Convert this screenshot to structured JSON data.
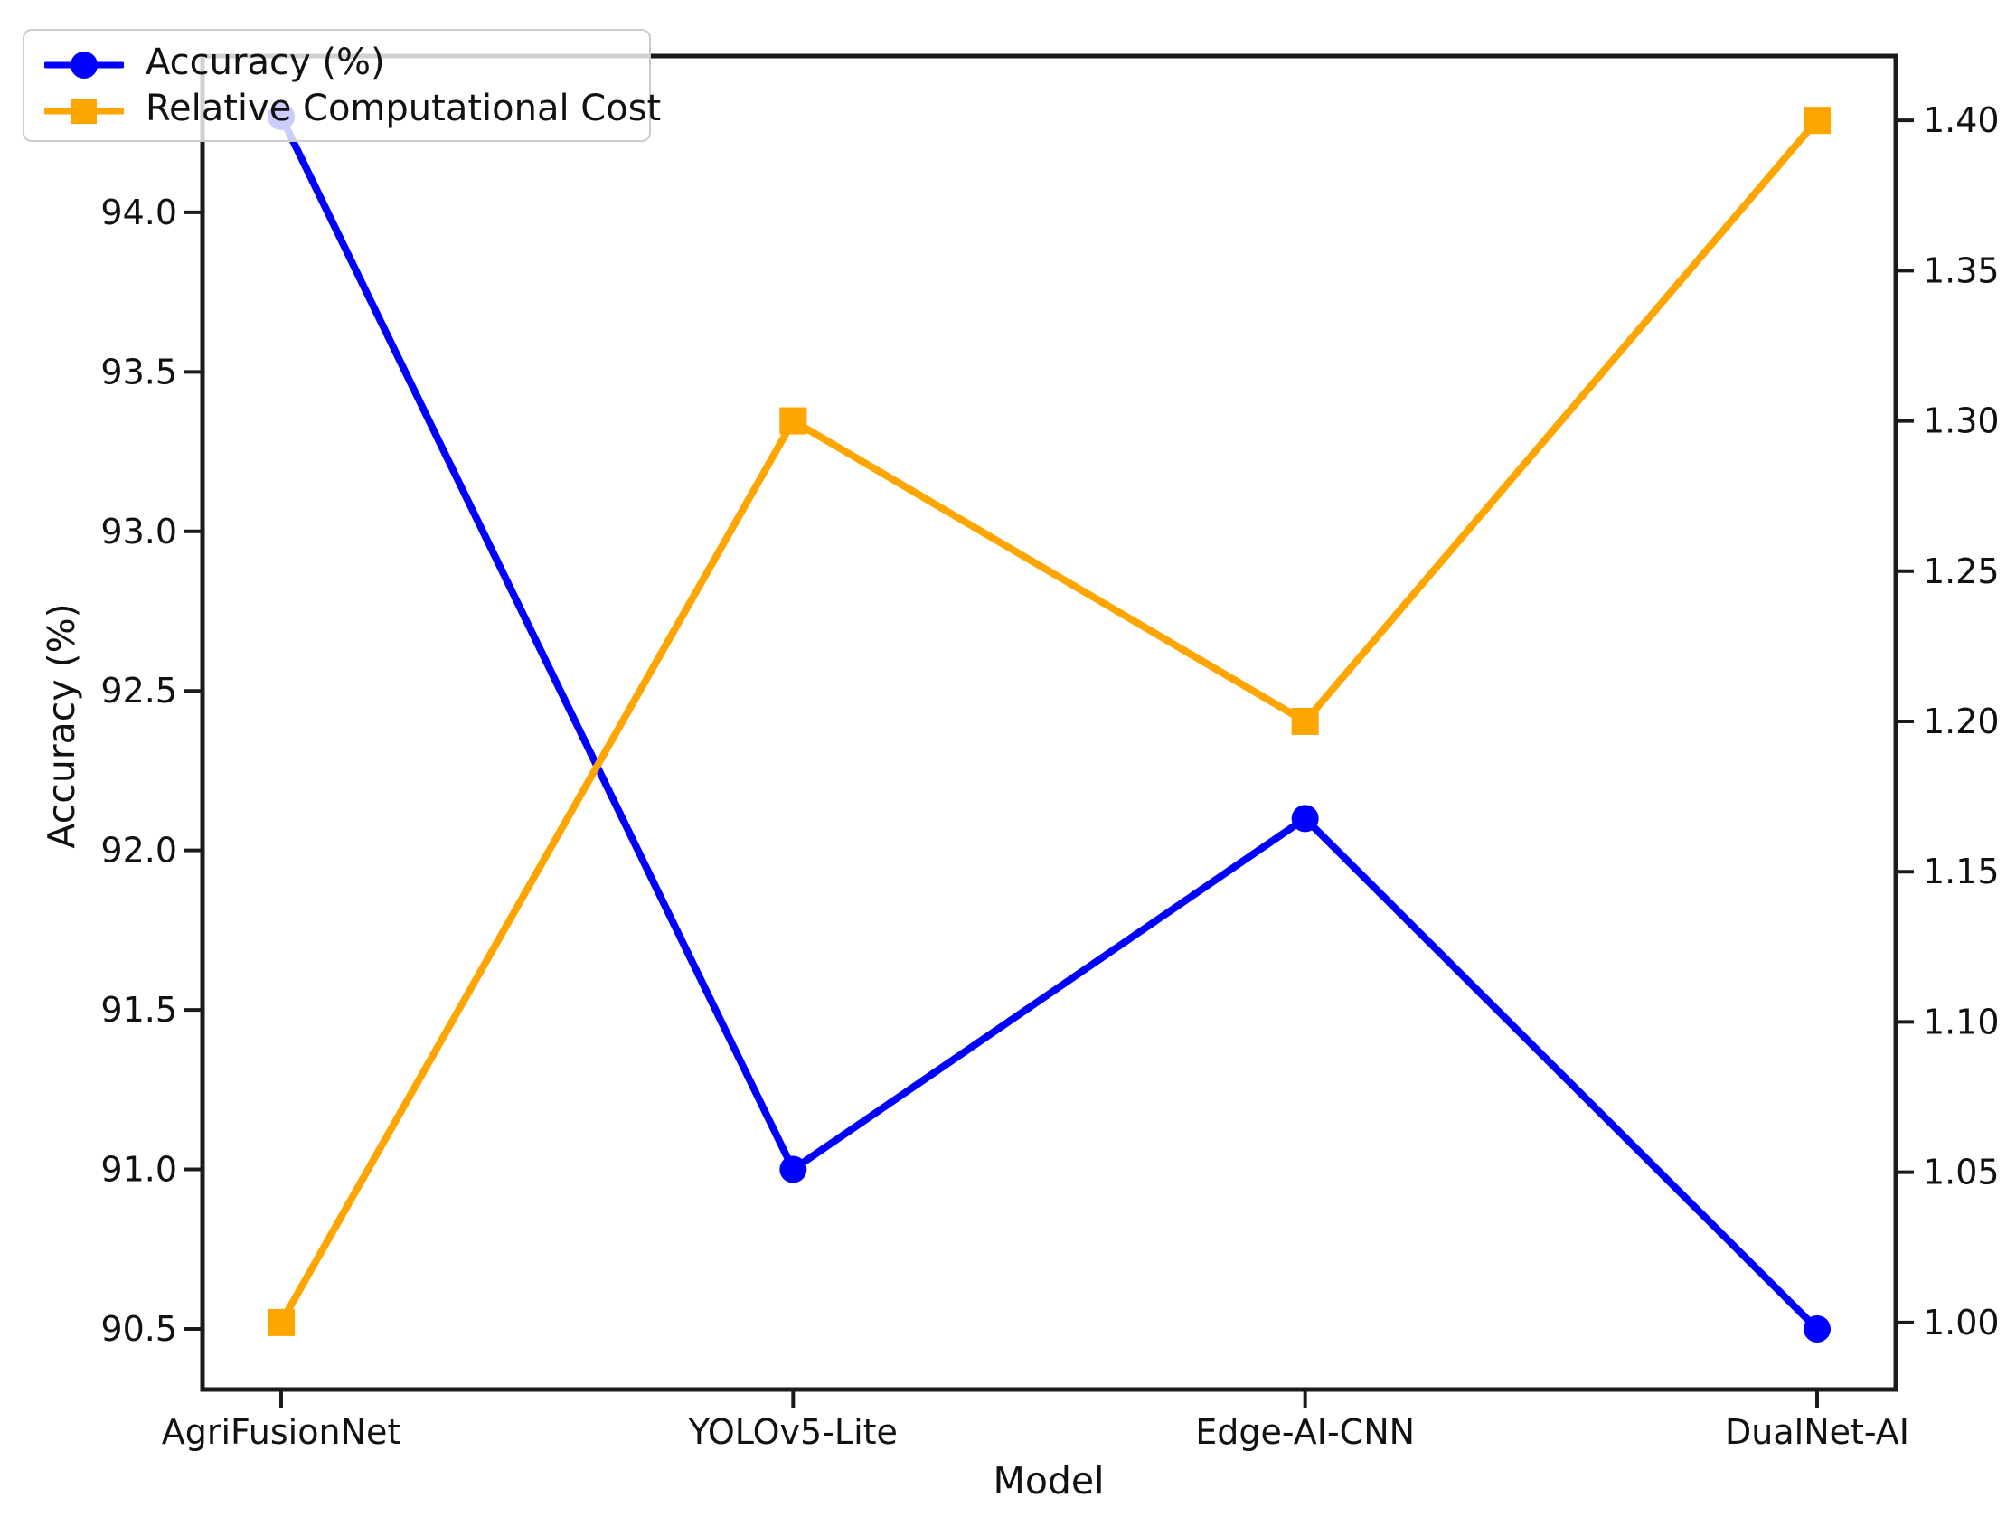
{
  "chart_data": {
    "type": "line",
    "title": "",
    "xlabel": "Model",
    "ylabel_left": "Accuracy (%)",
    "ylabel_right": "",
    "categories": [
      "AgriFusionNet",
      "YOLOv5-Lite",
      "Edge-AI-CNN",
      "DualNet-AI"
    ],
    "series": [
      {
        "name": "Accuracy (%)",
        "axis": "left",
        "values": [
          94.3,
          91.0,
          92.1,
          90.5
        ],
        "color": "#0000ff",
        "marker": "circle"
      },
      {
        "name": "Relative Computational Cost",
        "axis": "right",
        "values": [
          1.0,
          1.3,
          1.2,
          1.4
        ],
        "color": "#ffa500",
        "marker": "square"
      }
    ],
    "left_axis": {
      "tick_labels": [
        "90.5",
        "91.0",
        "91.5",
        "92.0",
        "92.5",
        "93.0",
        "93.5",
        "94.0"
      ],
      "min": 90.31,
      "max": 94.49
    },
    "right_axis": {
      "tick_labels": [
        "1.00",
        "1.05",
        "1.10",
        "1.15",
        "1.20",
        "1.25",
        "1.30",
        "1.35",
        "1.40"
      ],
      "min": 0.9777,
      "max": 1.4214
    },
    "legend": {
      "position": "upper-left",
      "entries": [
        "Accuracy (%)",
        "Relative Computational Cost"
      ]
    },
    "grid": false,
    "colors": {
      "background": "#ffffff",
      "spine": "#1a1a1a",
      "text": "#111111",
      "legend_border": "#cccccc"
    }
  }
}
